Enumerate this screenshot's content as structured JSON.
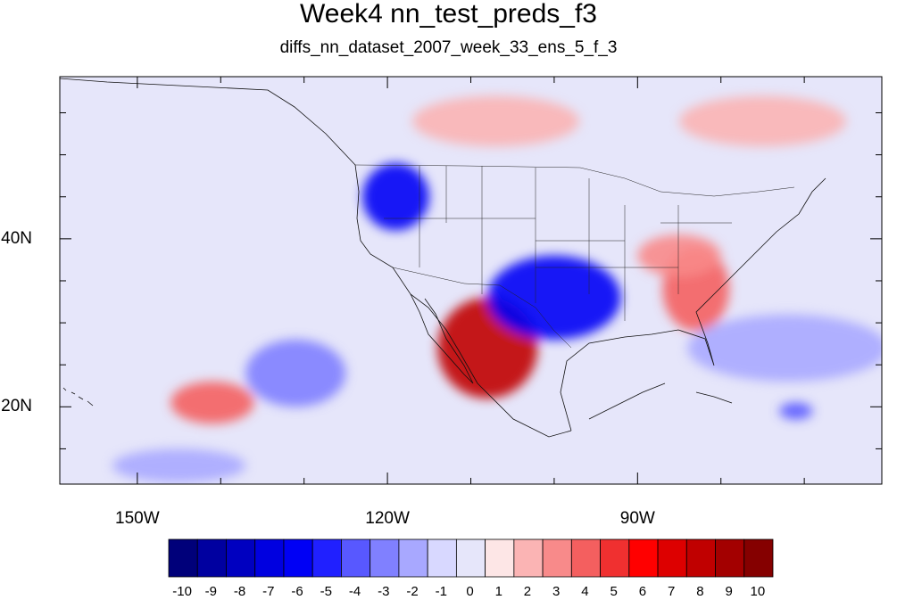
{
  "title": "Week4 nn_test_preds_f3",
  "subtitle": "diffs_nn_dataset_2007_week_33_ens_5_f_3",
  "lon_ticks": [
    {
      "lon": -150,
      "label": "150W"
    },
    {
      "lon": -120,
      "label": "120W"
    },
    {
      "lon": -90,
      "label": "90W"
    }
  ],
  "lat_ticks": [
    {
      "lat": 40,
      "label": "40N"
    },
    {
      "lat": 20,
      "label": "20N"
    }
  ],
  "map_extent": {
    "lon_min": -159.3,
    "lon_max": -60.7,
    "lat_min": 10.8,
    "lat_max": 59.3
  },
  "colorbar": {
    "labels": [
      "-10",
      "-9",
      "-8",
      "-7",
      "-6",
      "-5",
      "-4",
      "-3",
      "-2",
      "-1",
      "0",
      "1",
      "2",
      "3",
      "4",
      "5",
      "6",
      "7",
      "8",
      "9",
      "10"
    ],
    "colors": [
      "#00007a",
      "#0000a0",
      "#0000c0",
      "#0000e0",
      "#0000f5",
      "#2020ff",
      "#5858ff",
      "#8080ff",
      "#a8a8ff",
      "#d8d8ff",
      "#e6e6fa",
      "#fde6e6",
      "#fbb4b4",
      "#f88a8a",
      "#f45f5f",
      "#f03030",
      "#ff0000",
      "#dd0000",
      "#c00000",
      "#a30000",
      "#850000"
    ]
  },
  "anomaly_regions": [
    {
      "name": "sw-us-mexico-warm",
      "value": 8,
      "lon": -108,
      "lat": 27,
      "rlon": 6,
      "rlat": 6
    },
    {
      "name": "south-central-cold",
      "value": -6,
      "lon": -100,
      "lat": 33,
      "rlon": 8,
      "rlat": 5
    },
    {
      "name": "pacific-nw-cold",
      "value": -6,
      "lon": -119,
      "lat": 45,
      "rlon": 4,
      "rlat": 4
    },
    {
      "name": "southeast-warm",
      "value": 4,
      "lon": -83,
      "lat": 34,
      "rlon": 4,
      "rlat": 5
    },
    {
      "name": "ohio-valley-warm",
      "value": 3,
      "lon": -85,
      "lat": 38,
      "rlon": 5,
      "rlat": 2.5
    },
    {
      "name": "east-pacific-warm",
      "value": 4,
      "lon": -141,
      "lat": 20.5,
      "rlon": 5,
      "rlat": 2.5
    },
    {
      "name": "east-pacific-cold",
      "value": -3,
      "lon": -131,
      "lat": 24,
      "rlon": 6,
      "rlat": 4
    },
    {
      "name": "subtropical-pacific-cold",
      "value": -2,
      "lon": -145,
      "lat": 13,
      "rlon": 8,
      "rlat": 2
    },
    {
      "name": "canada-warm-west",
      "value": 2,
      "lon": -107,
      "lat": 54,
      "rlon": 10,
      "rlat": 3
    },
    {
      "name": "canada-warm-east",
      "value": 2,
      "lon": -75,
      "lat": 54,
      "rlon": 10,
      "rlat": 3
    },
    {
      "name": "atlantic-cold",
      "value": -2,
      "lon": -72,
      "lat": 27,
      "rlon": 12,
      "rlat": 4
    },
    {
      "name": "caribbean-cold",
      "value": -4,
      "lon": -71,
      "lat": 19.5,
      "rlon": 2,
      "rlat": 1
    }
  ]
}
